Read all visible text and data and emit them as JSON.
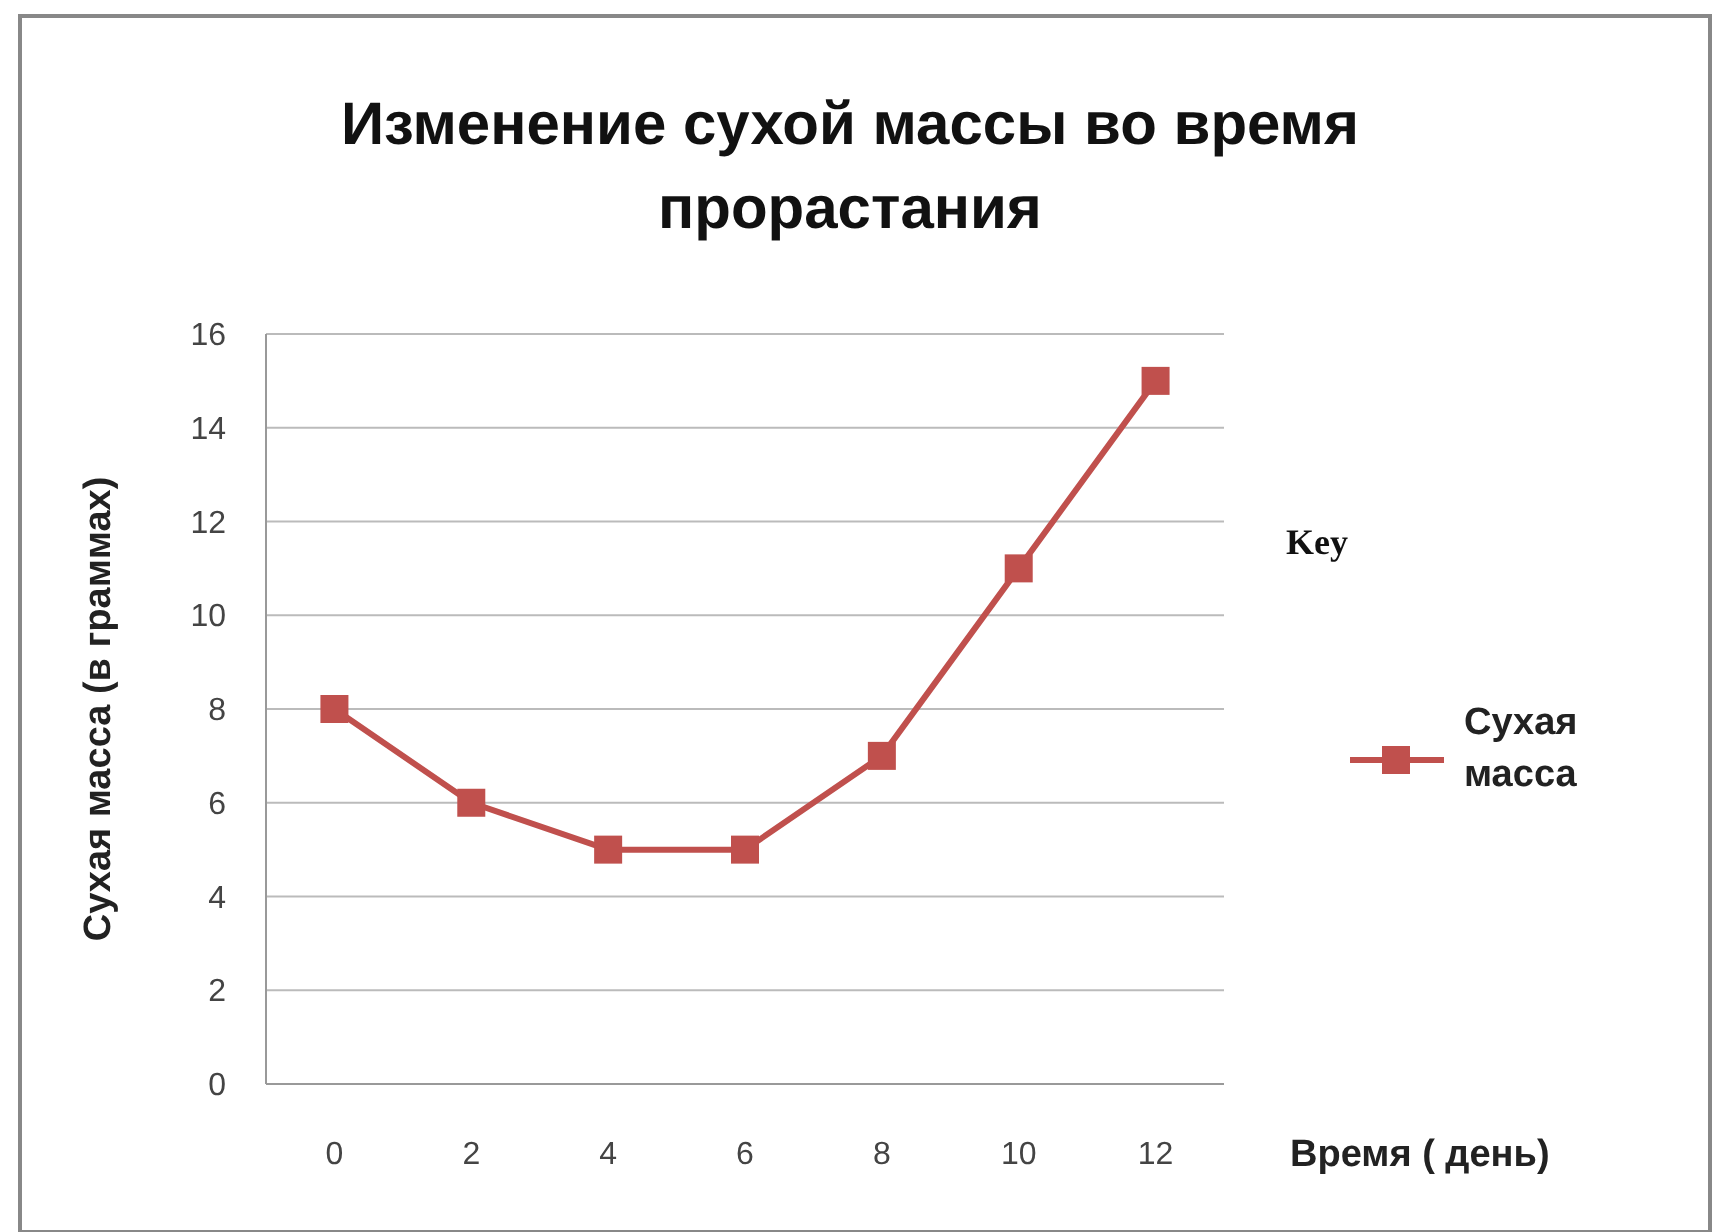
{
  "chart_data": {
    "type": "line",
    "title": "Изменение сухой массы во время прорастания",
    "xlabel": "Время ( день)",
    "ylabel": "Сухая масса (в граммах)",
    "legend_title": "Key",
    "categories": [
      "0",
      "2",
      "4",
      "6",
      "8",
      "10",
      "12"
    ],
    "series": [
      {
        "name": "Сухая масса",
        "color": "#c0504d",
        "values": [
          8,
          6,
          5,
          5,
          7,
          11,
          15
        ]
      }
    ],
    "ylim": [
      0,
      16
    ],
    "yticks": [
      0,
      2,
      4,
      6,
      8,
      10,
      12,
      14,
      16
    ],
    "grid": "y",
    "legend": "right",
    "marker": "square",
    "line_style": "solid"
  }
}
